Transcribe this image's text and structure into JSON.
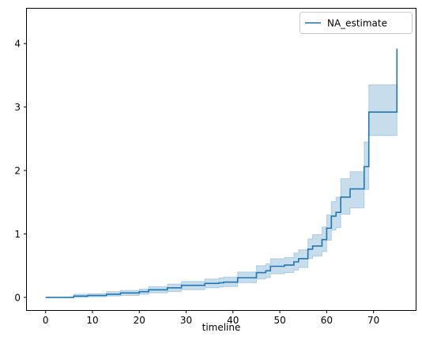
{
  "chart_data": {
    "type": "line",
    "title": "",
    "xlabel": "timeline",
    "ylabel": "",
    "xlim": [
      -4,
      79
    ],
    "ylim": [
      -0.2,
      4.55
    ],
    "x_ticks": [
      0,
      10,
      20,
      30,
      40,
      50,
      60,
      70
    ],
    "y_ticks": [
      0,
      1,
      2,
      3,
      4
    ],
    "grid": false,
    "legend": {
      "placement": "top-right",
      "entries": [
        "NA_estimate"
      ]
    },
    "series": [
      {
        "name": "NA_estimate",
        "color": "#1f77b4",
        "step": "post",
        "x": [
          0,
          6,
          9,
          13,
          16,
          20,
          22,
          26,
          29,
          34,
          37,
          38,
          41,
          45,
          47,
          48,
          51,
          53,
          54,
          56,
          57,
          59,
          60,
          61,
          62,
          63,
          65,
          68,
          69,
          75
        ],
        "y": [
          0,
          0.02,
          0.03,
          0.05,
          0.07,
          0.09,
          0.12,
          0.15,
          0.19,
          0.22,
          0.23,
          0.24,
          0.31,
          0.39,
          0.42,
          0.49,
          0.51,
          0.56,
          0.61,
          0.76,
          0.81,
          0.91,
          1.09,
          1.28,
          1.34,
          1.58,
          1.71,
          2.06,
          2.92,
          3.92
        ],
        "ci_lower": [
          0,
          0.0,
          0.01,
          0.02,
          0.03,
          0.05,
          0.07,
          0.09,
          0.12,
          0.15,
          0.16,
          0.17,
          0.23,
          0.29,
          0.31,
          0.37,
          0.39,
          0.43,
          0.47,
          0.61,
          0.65,
          0.72,
          0.9,
          1.06,
          1.1,
          1.31,
          1.41,
          1.7,
          2.55,
          2.55
        ],
        "ci_upper": [
          0,
          0.05,
          0.06,
          0.09,
          0.11,
          0.13,
          0.17,
          0.21,
          0.25,
          0.29,
          0.31,
          0.32,
          0.4,
          0.5,
          0.53,
          0.61,
          0.63,
          0.7,
          0.75,
          0.92,
          0.99,
          1.11,
          1.3,
          1.51,
          1.58,
          1.87,
          1.98,
          2.45,
          3.35,
          3.35
        ]
      }
    ]
  }
}
